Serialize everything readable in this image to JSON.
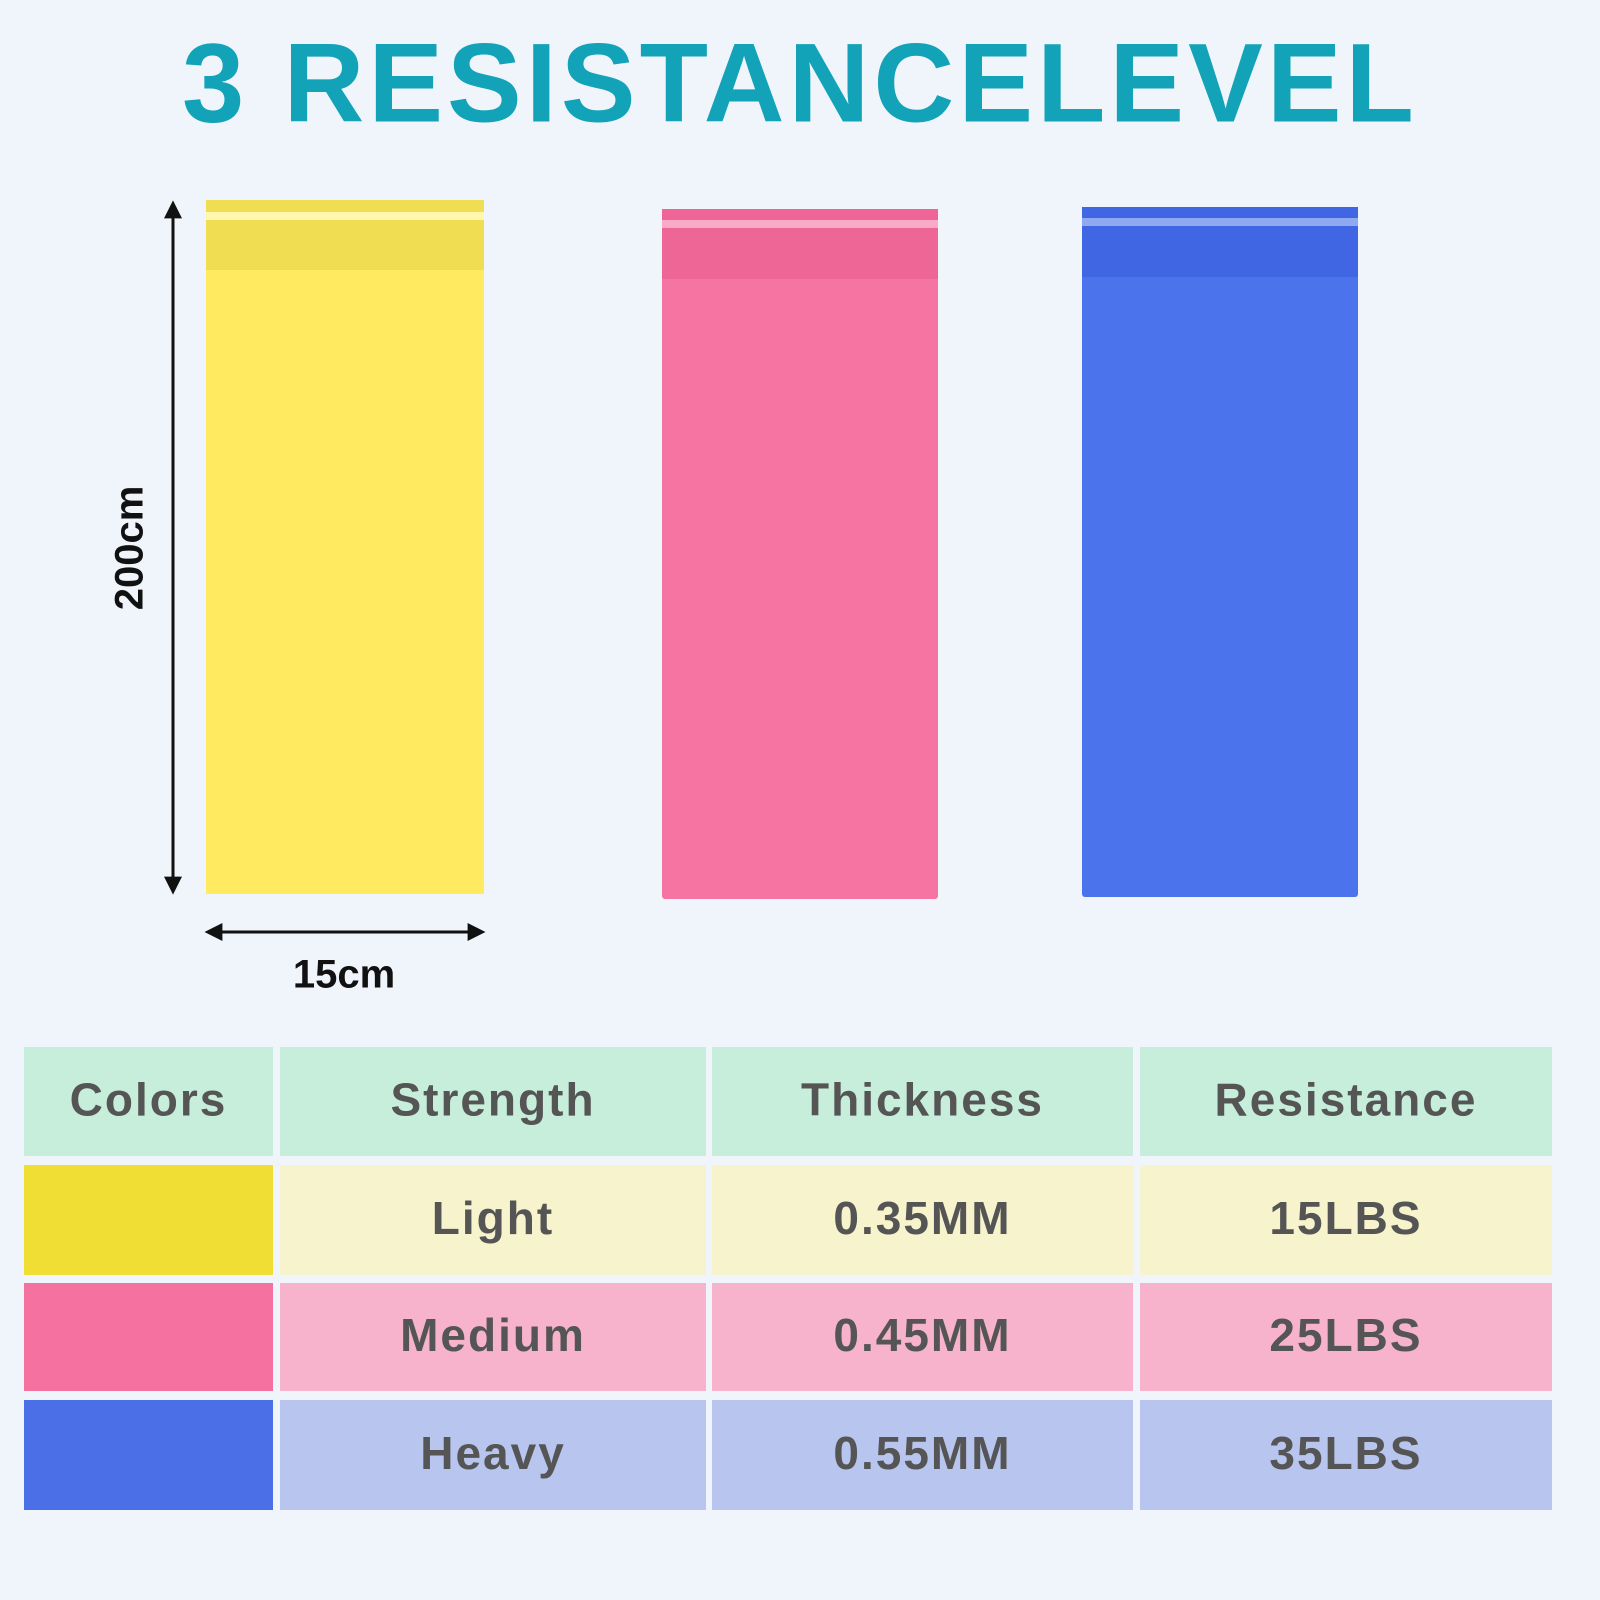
{
  "title": "3 RESISTANCELEVEL",
  "dimensions": {
    "height": "200cm",
    "width": "15cm"
  },
  "table": {
    "header": [
      "Colors",
      "Strength",
      "Thickness",
      "Resistance"
    ],
    "rows": [
      [
        "Light",
        "0.35MM",
        "15LBS"
      ],
      [
        "Medium",
        "0.45MM",
        "25LBS"
      ],
      [
        "Heavy",
        "0.55MM",
        "35LBS"
      ]
    ]
  }
}
